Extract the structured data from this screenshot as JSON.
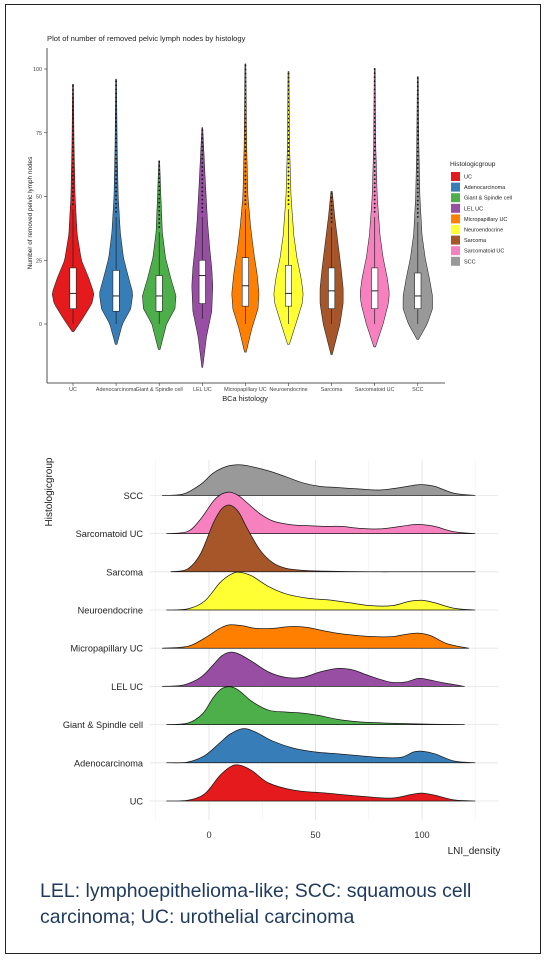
{
  "caption": "LEL: lymphoepithelioma-like; SCC: squamous cell carcinoma; UC: urothelial carcinoma",
  "chart_data": [
    {
      "type": "violin",
      "title": "Plot of number of removed pelvic lymph nodes by histology",
      "xlabel": "BCa histology",
      "ylabel": "Number of removed pelvic lymph nodes",
      "ylim": [
        -25,
        102
      ],
      "yticks": [
        0,
        25,
        50,
        75,
        100
      ],
      "grid": false,
      "legend_title": "Histologicgroup",
      "legend_position": "right",
      "categories": [
        "UC",
        "Adenocarcinoma",
        "Giant & Spindle cell",
        "LEL UC",
        "Micropapillary UC",
        "Neuroendocrine",
        "Sarcoma",
        "Sarcomatoid UC",
        "SCC"
      ],
      "colors": [
        "#e41a1c",
        "#377eb8",
        "#4daf4a",
        "#984ea3",
        "#ff7f00",
        "#ffff33",
        "#a65628",
        "#f781bf",
        "#999999"
      ],
      "series": [
        {
          "name": "UC",
          "min": -3,
          "max": 94,
          "q1": 6,
          "median": 12,
          "q3": 22,
          "whisker_low": 0,
          "whisker_high": 45,
          "widths": [
            [
              -3,
              0.04
            ],
            [
              2,
              0.45
            ],
            [
              8,
              0.9
            ],
            [
              12,
              1.0
            ],
            [
              18,
              0.75
            ],
            [
              25,
              0.4
            ],
            [
              35,
              0.2
            ],
            [
              50,
              0.1
            ],
            [
              70,
              0.05
            ],
            [
              94,
              0.02
            ]
          ]
        },
        {
          "name": "Adenocarcinoma",
          "min": -8,
          "max": 96,
          "q1": 5,
          "median": 11,
          "q3": 21,
          "whisker_low": 0,
          "whisker_high": 42,
          "widths": [
            [
              -8,
              0.04
            ],
            [
              0,
              0.3
            ],
            [
              6,
              0.7
            ],
            [
              12,
              0.8
            ],
            [
              18,
              0.6
            ],
            [
              26,
              0.35
            ],
            [
              36,
              0.2
            ],
            [
              50,
              0.1
            ],
            [
              70,
              0.05
            ],
            [
              96,
              0.02
            ]
          ]
        },
        {
          "name": "Giant & Spindle cell",
          "min": -10,
          "max": 64,
          "q1": 5,
          "median": 11,
          "q3": 19,
          "whisker_low": 0,
          "whisker_high": 36,
          "widths": [
            [
              -10,
              0.04
            ],
            [
              0,
              0.35
            ],
            [
              6,
              0.75
            ],
            [
              11,
              0.8
            ],
            [
              18,
              0.55
            ],
            [
              26,
              0.3
            ],
            [
              36,
              0.15
            ],
            [
              50,
              0.08
            ],
            [
              64,
              0.02
            ]
          ]
        },
        {
          "name": "LEL UC",
          "min": -17,
          "max": 77,
          "q1": 8,
          "median": 19,
          "q3": 25,
          "whisker_low": 2,
          "whisker_high": 42,
          "widths": [
            [
              -17,
              0.02
            ],
            [
              -5,
              0.2
            ],
            [
              5,
              0.45
            ],
            [
              15,
              0.5
            ],
            [
              22,
              0.45
            ],
            [
              30,
              0.35
            ],
            [
              40,
              0.25
            ],
            [
              55,
              0.15
            ],
            [
              77,
              0.02
            ]
          ]
        },
        {
          "name": "Micropapillary UC",
          "min": -11,
          "max": 102,
          "q1": 7,
          "median": 15,
          "q3": 26,
          "whisker_low": 0,
          "whisker_high": 45,
          "widths": [
            [
              -11,
              0.04
            ],
            [
              -2,
              0.3
            ],
            [
              6,
              0.6
            ],
            [
              12,
              0.65
            ],
            [
              20,
              0.55
            ],
            [
              28,
              0.4
            ],
            [
              38,
              0.25
            ],
            [
              50,
              0.12
            ],
            [
              70,
              0.06
            ],
            [
              102,
              0.02
            ]
          ]
        },
        {
          "name": "Neuroendocrine",
          "min": -8,
          "max": 99,
          "q1": 7,
          "median": 12,
          "q3": 23,
          "whisker_low": 0,
          "whisker_high": 45,
          "widths": [
            [
              -8,
              0.04
            ],
            [
              0,
              0.35
            ],
            [
              8,
              0.65
            ],
            [
              12,
              0.7
            ],
            [
              18,
              0.6
            ],
            [
              26,
              0.4
            ],
            [
              35,
              0.25
            ],
            [
              50,
              0.12
            ],
            [
              70,
              0.05
            ],
            [
              99,
              0.02
            ]
          ]
        },
        {
          "name": "Sarcoma",
          "min": -12,
          "max": 52,
          "q1": 6,
          "median": 13,
          "q3": 22,
          "whisker_low": 0,
          "whisker_high": 38,
          "widths": [
            [
              -12,
              0.03
            ],
            [
              0,
              0.4
            ],
            [
              8,
              0.55
            ],
            [
              14,
              0.55
            ],
            [
              22,
              0.45
            ],
            [
              32,
              0.3
            ],
            [
              42,
              0.15
            ],
            [
              52,
              0.03
            ]
          ]
        },
        {
          "name": "Sarcomatoid UC",
          "min": -9,
          "max": 100,
          "q1": 6,
          "median": 13,
          "q3": 22,
          "whisker_low": 0,
          "whisker_high": 42,
          "widths": [
            [
              -9,
              0.04
            ],
            [
              0,
              0.4
            ],
            [
              8,
              0.65
            ],
            [
              12,
              0.7
            ],
            [
              18,
              0.6
            ],
            [
              26,
              0.4
            ],
            [
              35,
              0.25
            ],
            [
              50,
              0.12
            ],
            [
              70,
              0.05
            ],
            [
              100,
              0.02
            ]
          ]
        },
        {
          "name": "SCC",
          "min": -6,
          "max": 97,
          "q1": 6,
          "median": 11,
          "q3": 20,
          "whisker_low": 0,
          "whisker_high": 40,
          "widths": [
            [
              -6,
              0.04
            ],
            [
              0,
              0.45
            ],
            [
              6,
              0.7
            ],
            [
              11,
              0.7
            ],
            [
              18,
              0.55
            ],
            [
              26,
              0.35
            ],
            [
              35,
              0.2
            ],
            [
              50,
              0.1
            ],
            [
              70,
              0.05
            ],
            [
              97,
              0.02
            ]
          ]
        }
      ]
    },
    {
      "type": "ridgeline",
      "title": "",
      "xlabel": "LNI_density",
      "ylabel": "Histologicgroup",
      "xlim": [
        -27,
        131
      ],
      "xticks": [
        0,
        50,
        100
      ],
      "grid": true,
      "categories": [
        "UC",
        "Adenocarcinoma",
        "Giant & Spindle cell",
        "LEL UC",
        "Micropapillary UC",
        "Neuroendocrine",
        "Sarcoma",
        "Sarcomatoid UC",
        "SCC"
      ],
      "colors": [
        "#e41a1c",
        "#377eb8",
        "#4daf4a",
        "#984ea3",
        "#ff7f00",
        "#ffff33",
        "#a65628",
        "#f781bf",
        "#999999"
      ],
      "series": [
        {
          "name": "UC",
          "x": [
            -20,
            -10,
            -2,
            5,
            10,
            14,
            20,
            28,
            40,
            55,
            70,
            85,
            95,
            100,
            106,
            115,
            125
          ],
          "density": [
            0,
            0.02,
            0.2,
            0.7,
            0.95,
            1.0,
            0.85,
            0.5,
            0.3,
            0.22,
            0.14,
            0.08,
            0.18,
            0.22,
            0.16,
            0.03,
            0
          ]
        },
        {
          "name": "Adenocarcinoma",
          "x": [
            -20,
            -10,
            -2,
            5,
            10,
            16,
            22,
            30,
            40,
            50,
            60,
            70,
            80,
            90,
            96,
            100,
            106,
            115,
            125
          ],
          "density": [
            0,
            0.02,
            0.2,
            0.55,
            0.8,
            0.95,
            0.85,
            0.6,
            0.4,
            0.3,
            0.25,
            0.2,
            0.15,
            0.15,
            0.3,
            0.32,
            0.25,
            0.05,
            0
          ]
        },
        {
          "name": "Giant & Spindle cell",
          "x": [
            -20,
            -10,
            -3,
            2,
            6,
            10,
            14,
            20,
            28,
            36,
            44,
            52,
            60,
            70,
            80,
            90,
            105,
            120
          ],
          "density": [
            0,
            0.04,
            0.3,
            0.75,
            1.0,
            1.05,
            0.95,
            0.65,
            0.4,
            0.35,
            0.32,
            0.25,
            0.15,
            0.08,
            0.05,
            0.03,
            0.01,
            0
          ]
        },
        {
          "name": "LEL UC",
          "x": [
            -22,
            -12,
            -4,
            2,
            6,
            10,
            14,
            20,
            28,
            36,
            44,
            52,
            58,
            62,
            68,
            75,
            85,
            92,
            98,
            102,
            110,
            120
          ],
          "density": [
            0,
            0.04,
            0.25,
            0.6,
            0.85,
            0.95,
            0.9,
            0.7,
            0.4,
            0.25,
            0.25,
            0.4,
            0.48,
            0.5,
            0.45,
            0.3,
            0.12,
            0.12,
            0.22,
            0.2,
            0.1,
            0
          ]
        },
        {
          "name": "Micropapillary UC",
          "x": [
            -22,
            -10,
            -2,
            5,
            10,
            16,
            22,
            30,
            38,
            46,
            54,
            62,
            70,
            78,
            86,
            92,
            98,
            104,
            112,
            122
          ],
          "density": [
            0,
            0.05,
            0.28,
            0.55,
            0.65,
            0.62,
            0.55,
            0.55,
            0.6,
            0.58,
            0.48,
            0.4,
            0.35,
            0.32,
            0.32,
            0.38,
            0.42,
            0.35,
            0.12,
            0
          ]
        },
        {
          "name": "Neuroendocrine",
          "x": [
            -20,
            -10,
            -2,
            5,
            10,
            14,
            20,
            28,
            36,
            46,
            56,
            66,
            76,
            86,
            94,
            100,
            106,
            115,
            125
          ],
          "density": [
            0,
            0.03,
            0.25,
            0.75,
            0.98,
            1.05,
            0.95,
            0.65,
            0.45,
            0.33,
            0.28,
            0.2,
            0.12,
            0.12,
            0.24,
            0.27,
            0.2,
            0.05,
            0
          ]
        },
        {
          "name": "Sarcoma",
          "x": [
            -18,
            -10,
            -4,
            2,
            6,
            10,
            14,
            18,
            24,
            30,
            36,
            44,
            54,
            64,
            75,
            85,
            95,
            105,
            115,
            125
          ],
          "density": [
            0,
            0.08,
            0.5,
            1.35,
            1.75,
            1.85,
            1.65,
            1.2,
            0.6,
            0.25,
            0.1,
            0.04,
            0.02,
            0.01,
            0,
            0,
            0,
            0,
            0,
            0
          ]
        },
        {
          "name": "Sarcomatoid UC",
          "x": [
            -20,
            -10,
            -4,
            2,
            6,
            10,
            14,
            18,
            24,
            30,
            38,
            46,
            54,
            62,
            70,
            80,
            90,
            96,
            100,
            106,
            115,
            125
          ],
          "density": [
            0,
            0.06,
            0.4,
            0.9,
            1.1,
            1.15,
            1.05,
            0.85,
            0.55,
            0.35,
            0.25,
            0.22,
            0.2,
            0.2,
            0.15,
            0.13,
            0.2,
            0.25,
            0.25,
            0.2,
            0.05,
            0
          ]
        },
        {
          "name": "SCC",
          "x": [
            -22,
            -12,
            -4,
            2,
            8,
            14,
            20,
            28,
            36,
            44,
            52,
            60,
            70,
            80,
            90,
            96,
            100,
            106,
            115,
            125
          ],
          "density": [
            0,
            0.04,
            0.3,
            0.62,
            0.8,
            0.85,
            0.8,
            0.68,
            0.52,
            0.35,
            0.25,
            0.22,
            0.18,
            0.15,
            0.22,
            0.28,
            0.3,
            0.25,
            0.06,
            0
          ]
        }
      ]
    }
  ]
}
